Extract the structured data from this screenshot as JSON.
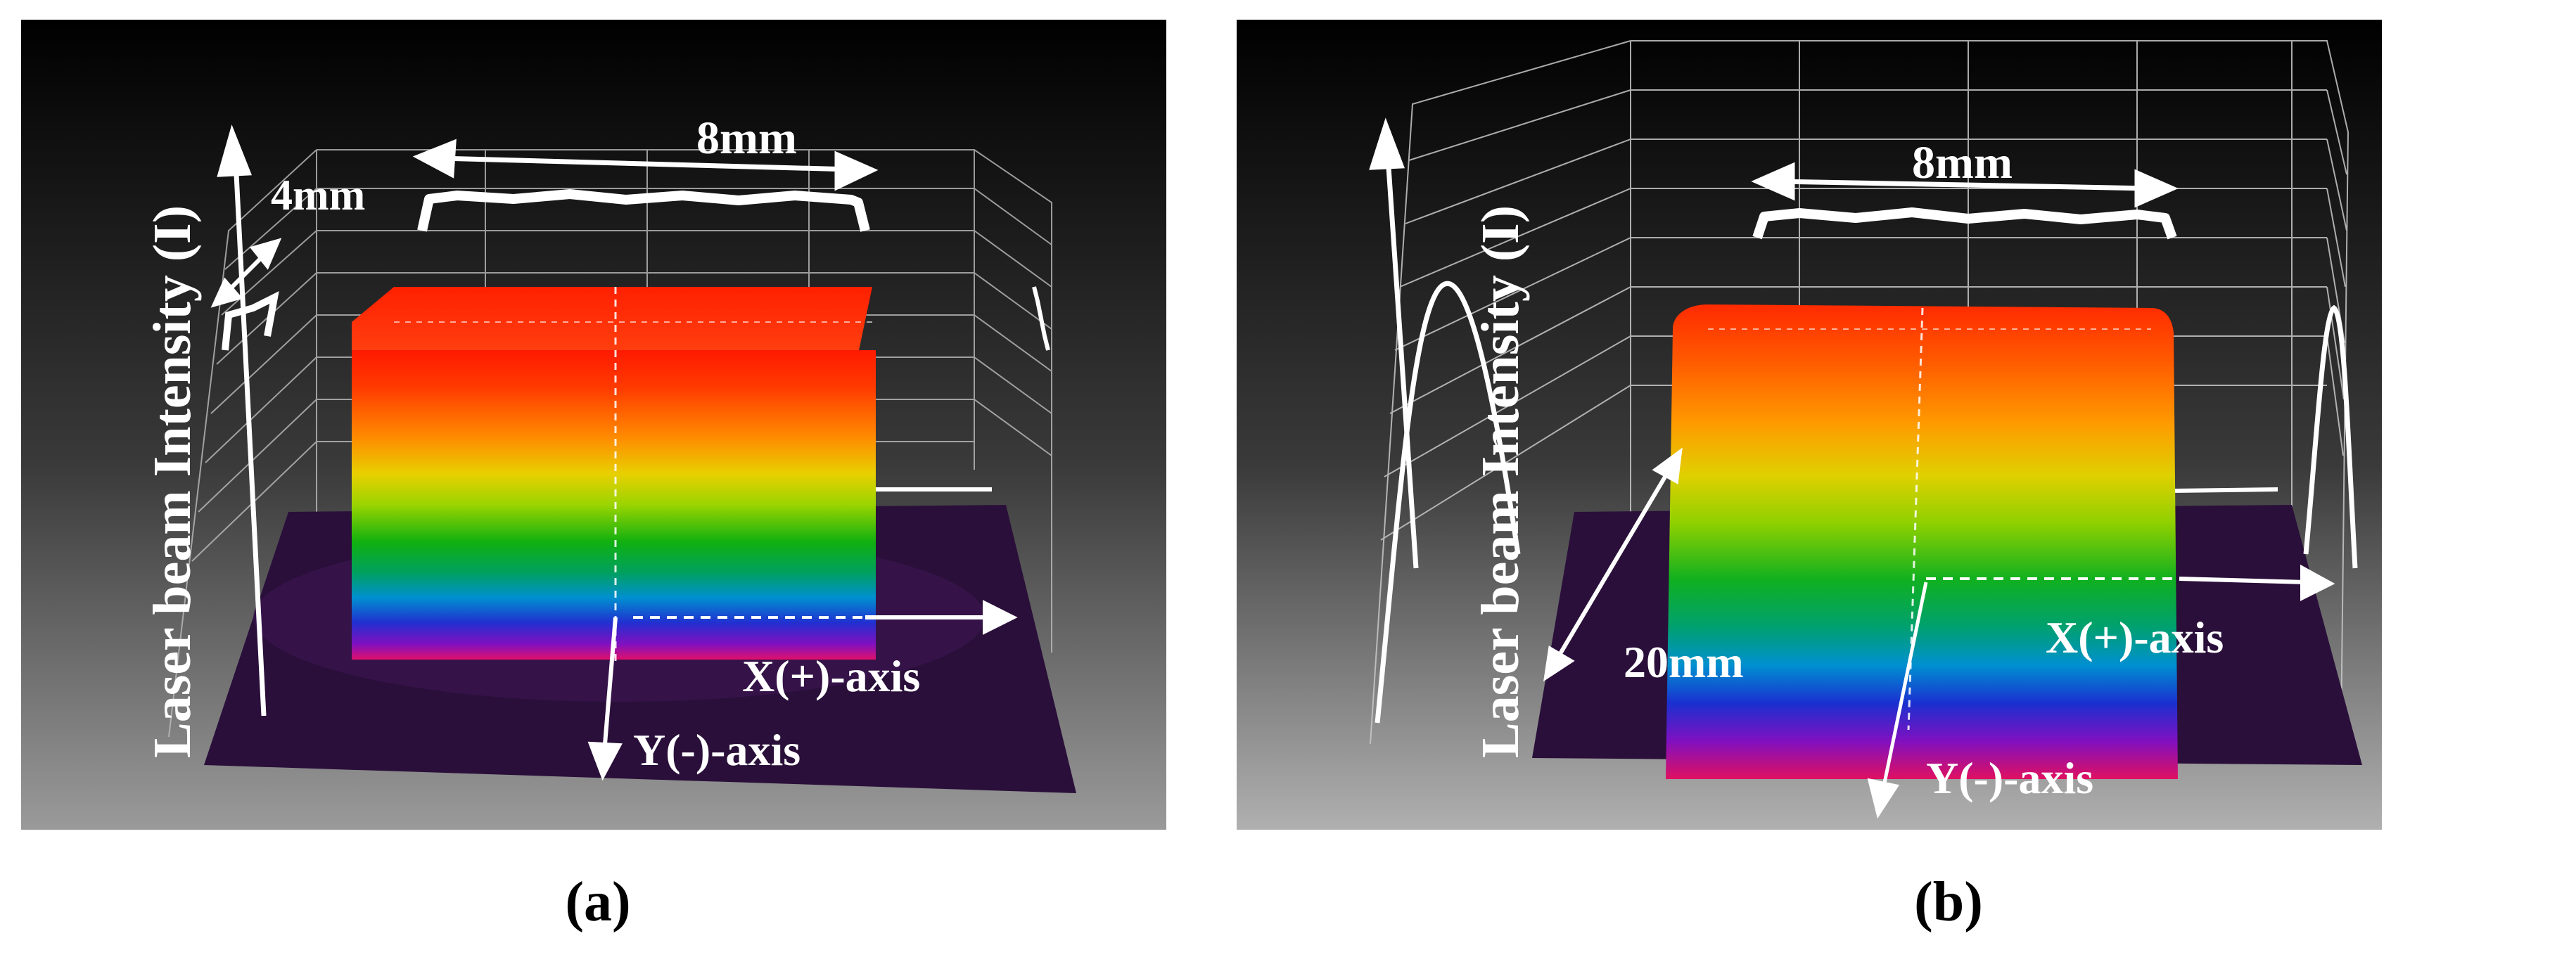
{
  "panels": [
    {
      "label": "(a)",
      "y_axis_label": "Laser beam Intensity (I)",
      "width_annotation": "8mm",
      "depth_annotation": "4mm",
      "x_axis_label": "X(+)-axis",
      "y_neg_axis_label": "Y(-)-axis"
    },
    {
      "label": "(b)",
      "y_axis_label": "Laser beam Intensity (I)",
      "width_annotation": "8mm",
      "depth_annotation": "20mm",
      "x_axis_label": "X(+)-axis",
      "y_neg_axis_label": "Y(-)-axis"
    }
  ],
  "colors": {
    "annotation": "#ffffff",
    "beam_top": "#ff2a00",
    "beam_bottom": "#c0107a",
    "base_plane": "#2a0f3a"
  }
}
